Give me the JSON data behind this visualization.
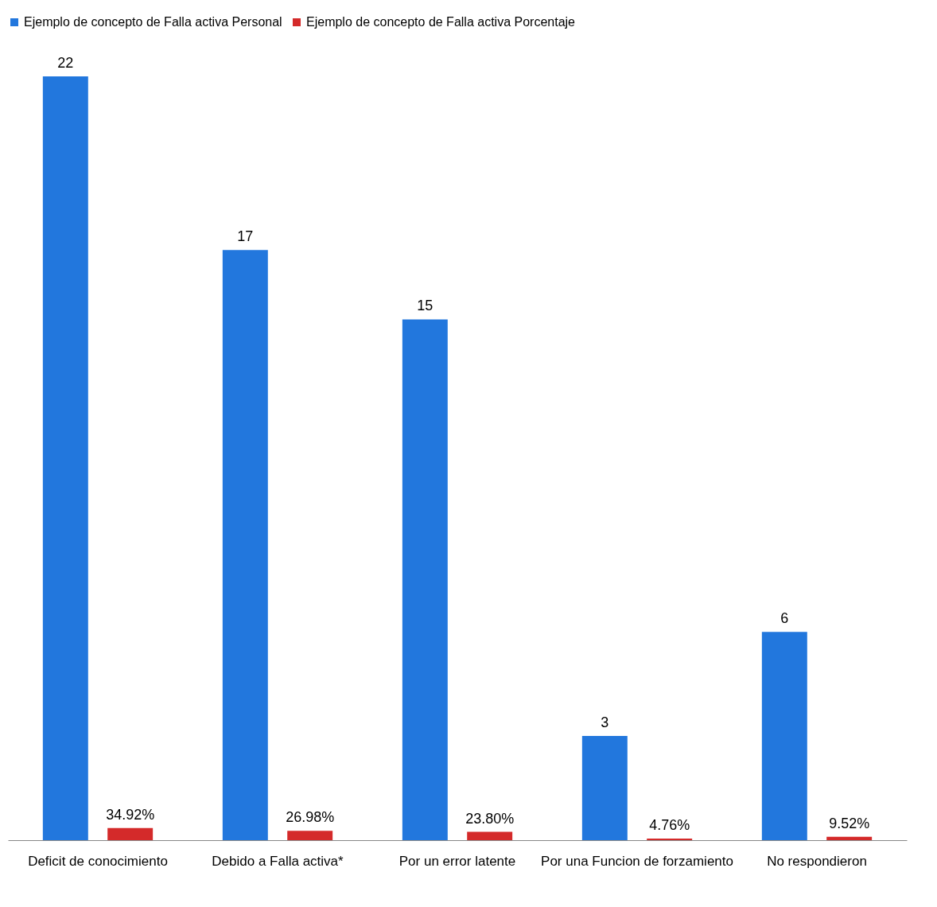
{
  "chart_data": {
    "type": "bar",
    "categories": [
      "Deficit de conocimiento",
      "Debido a Falla activa*",
      "Por un error latente",
      "Por una Funcion de forzamiento",
      "No respondieron"
    ],
    "series": [
      {
        "name": "Ejemplo de concepto de Falla activa Personal",
        "color": "#2277dd",
        "values": [
          22,
          17,
          15,
          3,
          6
        ],
        "value_labels": [
          "22",
          "17",
          "15",
          "3",
          "6"
        ]
      },
      {
        "name": "Ejemplo de concepto de Falla activa Porcentaje",
        "color": "#d42a2a",
        "values": [
          0.3492,
          0.2698,
          0.238,
          0.0476,
          0.0952
        ],
        "value_labels": [
          "34.92%",
          "26.98%",
          "23.80%",
          "4.76%",
          "9.52%"
        ]
      }
    ],
    "legend": "top"
  }
}
